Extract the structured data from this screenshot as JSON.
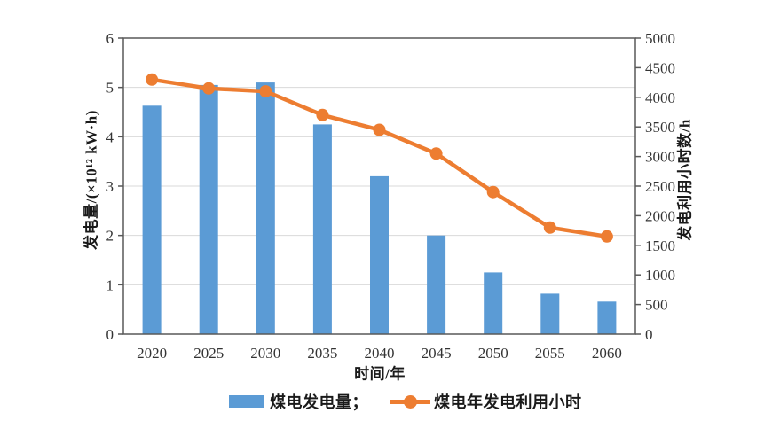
{
  "chart_data": {
    "type": "bar+line combo",
    "categories": [
      "2020",
      "2025",
      "2030",
      "2035",
      "2040",
      "2045",
      "2050",
      "2055",
      "2060"
    ],
    "series": [
      {
        "name": "煤电发电量",
        "type": "bar",
        "axis": "left",
        "values": [
          4.63,
          5.05,
          5.1,
          4.25,
          3.2,
          2.0,
          1.25,
          0.82,
          0.66
        ]
      },
      {
        "name": "煤电年发电利用小时",
        "type": "line",
        "axis": "right",
        "values": [
          4300,
          4150,
          4100,
          3700,
          3450,
          3050,
          2400,
          1800,
          1650
        ]
      }
    ],
    "xlabel": "时间/年",
    "ylabel_left": "发电量/(×10¹² kW·h)",
    "ylabel_right": "发电利用小时数/h",
    "ylim_left": [
      0,
      6
    ],
    "ylim_right": [
      0,
      5000
    ],
    "yticks_left": [
      0,
      1,
      2,
      3,
      4,
      5,
      6
    ],
    "yticks_right": [
      0,
      500,
      1000,
      1500,
      2000,
      2500,
      3000,
      3500,
      4000,
      4500,
      5000
    ],
    "grid": "horizontal gridlines at left-axis integers, boxed plot area",
    "legend_position": "bottom"
  },
  "legend": {
    "bar_label": "煤电发电量；",
    "line_label": "煤电年发电利用小时"
  },
  "colors": {
    "bar": "#5b9bd5",
    "line": "#ed7d31",
    "grid": "#d9d9d9",
    "axis": "#595959",
    "tick_text": "#333333"
  }
}
